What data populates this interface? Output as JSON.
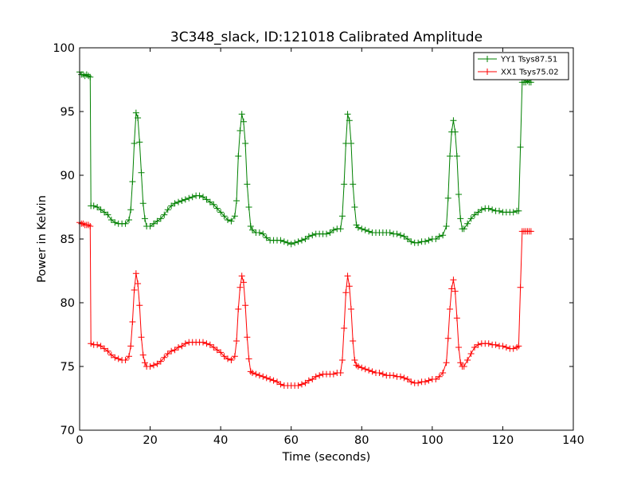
{
  "chart_data": {
    "type": "line",
    "title": "3C348_slack, ID:121018 Calibrated Amplitude",
    "xlabel": "Time (seconds)",
    "ylabel": "Power in Kelvin",
    "xlim": [
      0,
      140
    ],
    "ylim": [
      70,
      100
    ],
    "xticks": [
      0,
      20,
      40,
      60,
      80,
      100,
      120,
      140
    ],
    "yticks": [
      70,
      75,
      80,
      85,
      90,
      95,
      100
    ],
    "grid": false,
    "legend_position": "top-right",
    "marker": "+",
    "series": [
      {
        "name": "YY1 Tsys87.51",
        "color": "#008000",
        "points": [
          [
            0.0,
            98.1
          ],
          [
            0.5,
            97.9
          ],
          [
            1.0,
            97.9
          ],
          [
            1.5,
            97.8
          ],
          [
            2.0,
            97.9
          ],
          [
            2.5,
            97.8
          ],
          [
            3.0,
            97.7
          ],
          [
            3.2,
            87.6
          ],
          [
            4.0,
            87.6
          ],
          [
            5.0,
            87.5
          ],
          [
            6.0,
            87.3
          ],
          [
            7.0,
            87.1
          ],
          [
            8.0,
            86.9
          ],
          [
            9.0,
            86.5
          ],
          [
            10.0,
            86.3
          ],
          [
            11.0,
            86.2
          ],
          [
            12.0,
            86.2
          ],
          [
            13.0,
            86.2
          ],
          [
            14.0,
            86.5
          ],
          [
            14.5,
            87.3
          ],
          [
            15.0,
            89.5
          ],
          [
            15.5,
            92.5
          ],
          [
            16.0,
            94.9
          ],
          [
            16.5,
            94.5
          ],
          [
            17.0,
            92.6
          ],
          [
            17.5,
            90.2
          ],
          [
            18.0,
            87.8
          ],
          [
            18.5,
            86.6
          ],
          [
            19.0,
            86.0
          ],
          [
            20.0,
            86.0
          ],
          [
            21.0,
            86.2
          ],
          [
            22.0,
            86.4
          ],
          [
            23.0,
            86.6
          ],
          [
            24.0,
            86.9
          ],
          [
            25.0,
            87.3
          ],
          [
            26.0,
            87.6
          ],
          [
            27.0,
            87.8
          ],
          [
            28.0,
            87.9
          ],
          [
            29.0,
            88.0
          ],
          [
            30.0,
            88.1
          ],
          [
            31.0,
            88.2
          ],
          [
            32.0,
            88.3
          ],
          [
            33.0,
            88.4
          ],
          [
            34.0,
            88.4
          ],
          [
            35.0,
            88.3
          ],
          [
            36.0,
            88.1
          ],
          [
            37.0,
            87.9
          ],
          [
            38.0,
            87.7
          ],
          [
            39.0,
            87.4
          ],
          [
            40.0,
            87.1
          ],
          [
            41.0,
            86.8
          ],
          [
            42.0,
            86.5
          ],
          [
            43.0,
            86.4
          ],
          [
            44.0,
            86.8
          ],
          [
            44.5,
            88.0
          ],
          [
            45.0,
            91.5
          ],
          [
            45.5,
            93.5
          ],
          [
            46.0,
            94.8
          ],
          [
            46.5,
            94.2
          ],
          [
            47.0,
            92.5
          ],
          [
            47.5,
            89.3
          ],
          [
            48.0,
            87.5
          ],
          [
            48.5,
            86.0
          ],
          [
            49.0,
            85.7
          ],
          [
            50.0,
            85.5
          ],
          [
            51.0,
            85.5
          ],
          [
            52.0,
            85.4
          ],
          [
            53.0,
            85.1
          ],
          [
            54.0,
            84.9
          ],
          [
            55.0,
            84.9
          ],
          [
            56.0,
            84.9
          ],
          [
            57.0,
            84.9
          ],
          [
            58.0,
            84.8
          ],
          [
            59.0,
            84.7
          ],
          [
            60.0,
            84.6
          ],
          [
            61.0,
            84.7
          ],
          [
            62.0,
            84.8
          ],
          [
            63.0,
            84.9
          ],
          [
            64.0,
            85.0
          ],
          [
            65.0,
            85.2
          ],
          [
            66.0,
            85.3
          ],
          [
            67.0,
            85.4
          ],
          [
            68.0,
            85.4
          ],
          [
            69.0,
            85.4
          ],
          [
            70.0,
            85.4
          ],
          [
            71.0,
            85.5
          ],
          [
            72.0,
            85.7
          ],
          [
            73.0,
            85.8
          ],
          [
            74.0,
            85.8
          ],
          [
            74.5,
            86.8
          ],
          [
            75.0,
            89.3
          ],
          [
            75.5,
            92.5
          ],
          [
            76.0,
            94.8
          ],
          [
            76.5,
            94.3
          ],
          [
            77.0,
            92.5
          ],
          [
            77.5,
            89.3
          ],
          [
            78.0,
            87.5
          ],
          [
            78.5,
            86.1
          ],
          [
            79.0,
            85.9
          ],
          [
            80.0,
            85.8
          ],
          [
            81.0,
            85.7
          ],
          [
            82.0,
            85.6
          ],
          [
            83.0,
            85.5
          ],
          [
            84.0,
            85.5
          ],
          [
            85.0,
            85.5
          ],
          [
            86.0,
            85.5
          ],
          [
            87.0,
            85.5
          ],
          [
            88.0,
            85.5
          ],
          [
            89.0,
            85.4
          ],
          [
            90.0,
            85.4
          ],
          [
            91.0,
            85.3
          ],
          [
            92.0,
            85.2
          ],
          [
            93.0,
            85.0
          ],
          [
            94.0,
            84.8
          ],
          [
            95.0,
            84.7
          ],
          [
            96.0,
            84.7
          ],
          [
            97.0,
            84.8
          ],
          [
            98.0,
            84.8
          ],
          [
            99.0,
            84.9
          ],
          [
            100.0,
            85.0
          ],
          [
            101.0,
            85.0
          ],
          [
            102.0,
            85.2
          ],
          [
            103.0,
            85.3
          ],
          [
            104.0,
            86.0
          ],
          [
            104.5,
            88.2
          ],
          [
            105.0,
            91.5
          ],
          [
            105.5,
            93.4
          ],
          [
            106.0,
            94.3
          ],
          [
            106.5,
            93.4
          ],
          [
            107.0,
            91.5
          ],
          [
            107.5,
            88.5
          ],
          [
            108.0,
            86.6
          ],
          [
            108.5,
            85.8
          ],
          [
            109.0,
            85.8
          ],
          [
            110.0,
            86.2
          ],
          [
            111.0,
            86.6
          ],
          [
            112.0,
            86.9
          ],
          [
            113.0,
            87.1
          ],
          [
            114.0,
            87.3
          ],
          [
            115.0,
            87.4
          ],
          [
            116.0,
            87.4
          ],
          [
            117.0,
            87.3
          ],
          [
            118.0,
            87.2
          ],
          [
            119.0,
            87.2
          ],
          [
            120.0,
            87.1
          ],
          [
            121.0,
            87.1
          ],
          [
            122.0,
            87.1
          ],
          [
            123.0,
            87.1
          ],
          [
            124.0,
            87.2
          ],
          [
            124.5,
            87.2
          ],
          [
            125.0,
            92.2
          ],
          [
            125.5,
            97.3
          ],
          [
            126.0,
            97.3
          ],
          [
            126.5,
            97.3
          ],
          [
            127.0,
            97.4
          ],
          [
            127.5,
            97.3
          ],
          [
            128.0,
            97.3
          ]
        ]
      },
      {
        "name": "XX1 Tsys75.02",
        "color": "#ff0000",
        "points": [
          [
            0.0,
            86.3
          ],
          [
            0.5,
            86.2
          ],
          [
            1.0,
            86.2
          ],
          [
            1.5,
            86.1
          ],
          [
            2.0,
            86.1
          ],
          [
            2.5,
            86.1
          ],
          [
            3.0,
            86.0
          ],
          [
            3.2,
            76.8
          ],
          [
            4.0,
            76.7
          ],
          [
            5.0,
            76.7
          ],
          [
            6.0,
            76.6
          ],
          [
            7.0,
            76.4
          ],
          [
            8.0,
            76.2
          ],
          [
            9.0,
            75.9
          ],
          [
            10.0,
            75.7
          ],
          [
            11.0,
            75.6
          ],
          [
            12.0,
            75.5
          ],
          [
            13.0,
            75.5
          ],
          [
            14.0,
            75.8
          ],
          [
            14.5,
            76.6
          ],
          [
            15.0,
            78.5
          ],
          [
            15.5,
            81.0
          ],
          [
            16.0,
            82.3
          ],
          [
            16.5,
            81.5
          ],
          [
            17.0,
            79.8
          ],
          [
            17.5,
            77.3
          ],
          [
            18.0,
            75.9
          ],
          [
            18.5,
            75.3
          ],
          [
            19.0,
            75.0
          ],
          [
            20.0,
            75.0
          ],
          [
            21.0,
            75.1
          ],
          [
            22.0,
            75.2
          ],
          [
            23.0,
            75.4
          ],
          [
            24.0,
            75.7
          ],
          [
            25.0,
            76.0
          ],
          [
            26.0,
            76.2
          ],
          [
            27.0,
            76.3
          ],
          [
            28.0,
            76.5
          ],
          [
            29.0,
            76.6
          ],
          [
            30.0,
            76.8
          ],
          [
            31.0,
            76.9
          ],
          [
            32.0,
            76.9
          ],
          [
            33.0,
            76.9
          ],
          [
            34.0,
            76.9
          ],
          [
            35.0,
            76.9
          ],
          [
            36.0,
            76.8
          ],
          [
            37.0,
            76.7
          ],
          [
            38.0,
            76.5
          ],
          [
            39.0,
            76.3
          ],
          [
            40.0,
            76.1
          ],
          [
            41.0,
            75.8
          ],
          [
            42.0,
            75.6
          ],
          [
            43.0,
            75.5
          ],
          [
            44.0,
            75.8
          ],
          [
            44.5,
            77.0
          ],
          [
            45.0,
            79.5
          ],
          [
            45.5,
            81.2
          ],
          [
            46.0,
            82.1
          ],
          [
            46.5,
            81.6
          ],
          [
            47.0,
            79.8
          ],
          [
            47.5,
            77.3
          ],
          [
            48.0,
            75.6
          ],
          [
            48.5,
            74.6
          ],
          [
            49.0,
            74.5
          ],
          [
            50.0,
            74.4
          ],
          [
            51.0,
            74.3
          ],
          [
            52.0,
            74.2
          ],
          [
            53.0,
            74.1
          ],
          [
            54.0,
            74.0
          ],
          [
            55.0,
            73.9
          ],
          [
            56.0,
            73.8
          ],
          [
            57.0,
            73.6
          ],
          [
            58.0,
            73.5
          ],
          [
            59.0,
            73.5
          ],
          [
            60.0,
            73.5
          ],
          [
            61.0,
            73.5
          ],
          [
            62.0,
            73.5
          ],
          [
            63.0,
            73.6
          ],
          [
            64.0,
            73.7
          ],
          [
            65.0,
            73.9
          ],
          [
            66.0,
            74.0
          ],
          [
            67.0,
            74.2
          ],
          [
            68.0,
            74.3
          ],
          [
            69.0,
            74.4
          ],
          [
            70.0,
            74.4
          ],
          [
            71.0,
            74.4
          ],
          [
            72.0,
            74.4
          ],
          [
            73.0,
            74.5
          ],
          [
            74.0,
            74.5
          ],
          [
            74.5,
            75.5
          ],
          [
            75.0,
            78.0
          ],
          [
            75.5,
            80.8
          ],
          [
            76.0,
            82.1
          ],
          [
            76.5,
            81.3
          ],
          [
            77.0,
            79.5
          ],
          [
            77.5,
            77.0
          ],
          [
            78.0,
            75.5
          ],
          [
            78.5,
            75.1
          ],
          [
            79.0,
            75.0
          ],
          [
            80.0,
            74.9
          ],
          [
            81.0,
            74.8
          ],
          [
            82.0,
            74.7
          ],
          [
            83.0,
            74.6
          ],
          [
            84.0,
            74.5
          ],
          [
            85.0,
            74.5
          ],
          [
            86.0,
            74.4
          ],
          [
            87.0,
            74.3
          ],
          [
            88.0,
            74.3
          ],
          [
            89.0,
            74.3
          ],
          [
            90.0,
            74.2
          ],
          [
            91.0,
            74.2
          ],
          [
            92.0,
            74.1
          ],
          [
            93.0,
            74.0
          ],
          [
            94.0,
            73.8
          ],
          [
            95.0,
            73.7
          ],
          [
            96.0,
            73.7
          ],
          [
            97.0,
            73.8
          ],
          [
            98.0,
            73.8
          ],
          [
            99.0,
            73.9
          ],
          [
            100.0,
            74.0
          ],
          [
            101.0,
            74.0
          ],
          [
            102.0,
            74.2
          ],
          [
            103.0,
            74.5
          ],
          [
            104.0,
            75.3
          ],
          [
            104.5,
            77.2
          ],
          [
            105.0,
            79.5
          ],
          [
            105.5,
            81.1
          ],
          [
            106.0,
            81.8
          ],
          [
            106.5,
            80.9
          ],
          [
            107.0,
            78.8
          ],
          [
            107.5,
            76.5
          ],
          [
            108.0,
            75.3
          ],
          [
            108.5,
            75.0
          ],
          [
            109.0,
            75.0
          ],
          [
            110.0,
            75.5
          ],
          [
            111.0,
            76.0
          ],
          [
            112.0,
            76.5
          ],
          [
            113.0,
            76.7
          ],
          [
            114.0,
            76.8
          ],
          [
            115.0,
            76.8
          ],
          [
            116.0,
            76.8
          ],
          [
            117.0,
            76.7
          ],
          [
            118.0,
            76.7
          ],
          [
            119.0,
            76.6
          ],
          [
            120.0,
            76.6
          ],
          [
            121.0,
            76.5
          ],
          [
            122.0,
            76.4
          ],
          [
            123.0,
            76.4
          ],
          [
            124.0,
            76.5
          ],
          [
            124.5,
            76.6
          ],
          [
            125.0,
            81.2
          ],
          [
            125.5,
            85.6
          ],
          [
            126.0,
            85.6
          ],
          [
            126.5,
            85.6
          ],
          [
            127.0,
            85.6
          ],
          [
            127.5,
            85.6
          ],
          [
            128.0,
            85.6
          ]
        ]
      }
    ]
  }
}
